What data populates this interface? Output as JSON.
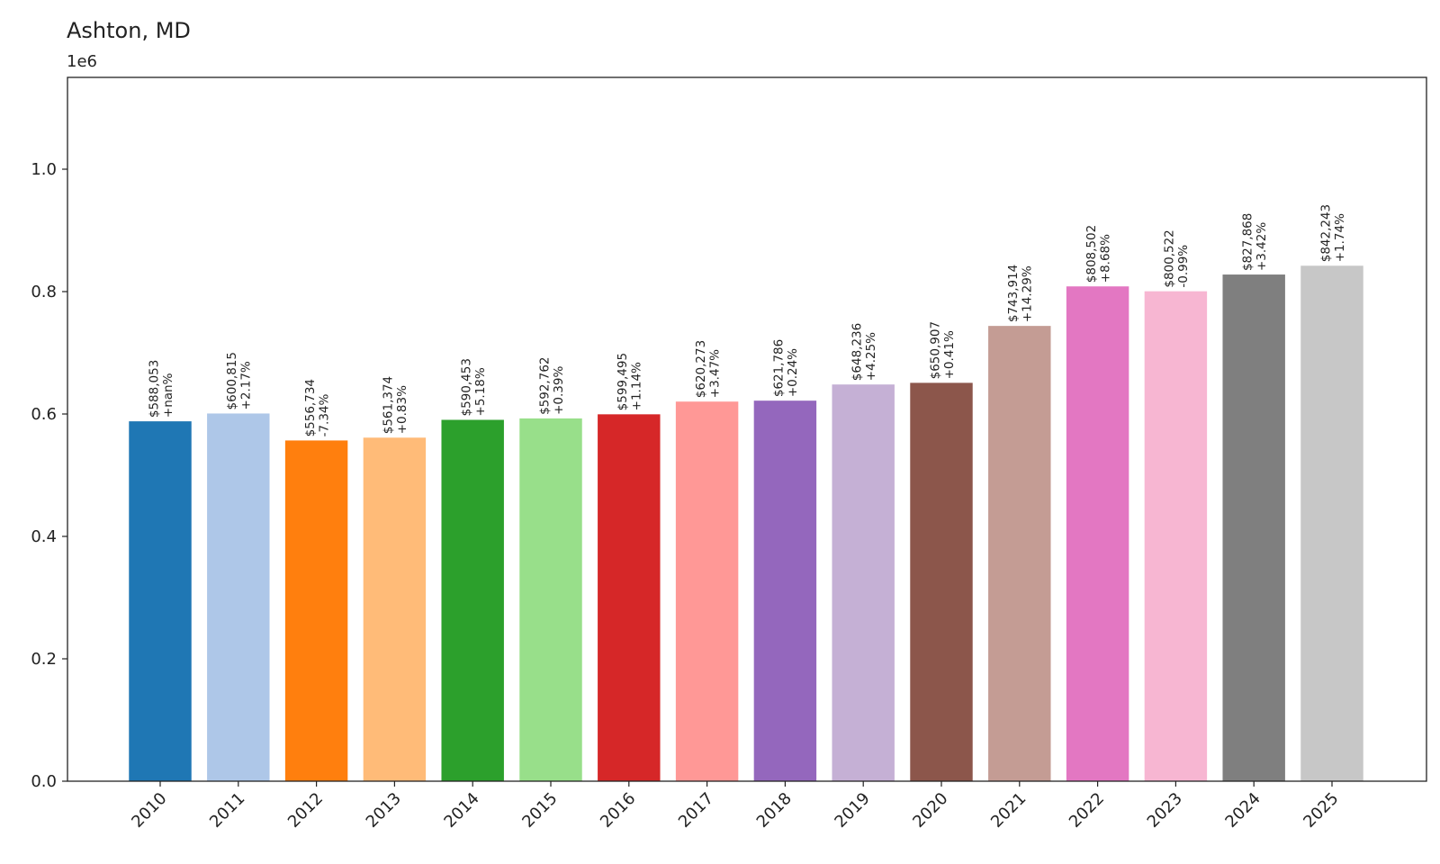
{
  "chart_data": {
    "type": "bar",
    "title": "Ashton, MD",
    "offset_label": "1e6",
    "xlabel": "",
    "ylabel": "",
    "ylim": [
      0,
      1150000
    ],
    "yticks": [
      0,
      200000,
      400000,
      600000,
      800000,
      1000000
    ],
    "ytick_labels": [
      "0.0",
      "0.2",
      "0.4",
      "0.6",
      "0.8",
      "1.0"
    ],
    "grid": false,
    "categories": [
      "2010",
      "2011",
      "2012",
      "2013",
      "2014",
      "2015",
      "2016",
      "2017",
      "2018",
      "2019",
      "2020",
      "2021",
      "2022",
      "2023",
      "2024",
      "2025"
    ],
    "values": [
      588053,
      600815,
      556734,
      561374,
      590453,
      592762,
      599495,
      620273,
      621786,
      648236,
      650907,
      743914,
      808502,
      800522,
      827868,
      842243
    ],
    "value_labels": [
      "$588,053",
      "$600,815",
      "$556,734",
      "$561,374",
      "$590,453",
      "$592,762",
      "$599,495",
      "$620,273",
      "$621,786",
      "$648,236",
      "$650,907",
      "$743,914",
      "$808,502",
      "$800,522",
      "$827,868",
      "$842,243"
    ],
    "change_labels": [
      "+nan%",
      "+2.17%",
      "-7.34%",
      "+0.83%",
      "+5.18%",
      "+0.39%",
      "+1.14%",
      "+3.47%",
      "+0.24%",
      "+4.25%",
      "+0.41%",
      "+14.29%",
      "+8.68%",
      "-0.99%",
      "+3.42%",
      "+1.74%"
    ],
    "colors": [
      "#1f77b4",
      "#aec7e8",
      "#ff7f0e",
      "#ffbb78",
      "#2ca02c",
      "#98df8a",
      "#d62728",
      "#ff9896",
      "#9467bd",
      "#c5b0d5",
      "#8c564b",
      "#c49c94",
      "#e377c2",
      "#f7b6d2",
      "#7f7f7f",
      "#c7c7c7"
    ]
  }
}
